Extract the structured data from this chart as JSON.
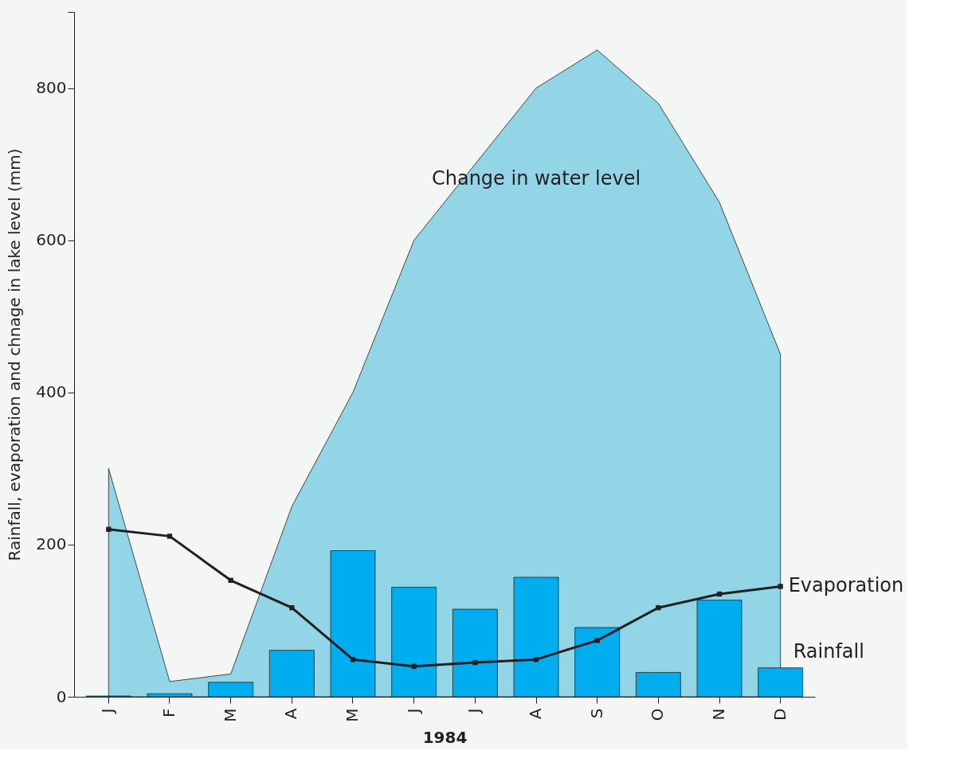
{
  "chart_data": {
    "type": "bar",
    "xlabel": "1984",
    "ylabel": "Rainfall, evaporation and chnage in lake level (mm)",
    "categories": [
      "J",
      "F",
      "M",
      "A",
      "M",
      "J",
      "J",
      "A",
      "S",
      "O",
      "N",
      "D"
    ],
    "ylim": [
      0,
      900
    ],
    "yticks": [
      0,
      200,
      400,
      600,
      800,
      {
        "value": 900,
        "label": null
      }
    ],
    "grid": false,
    "series": [
      {
        "name": "Change in water level",
        "type": "area",
        "color": "#92d5e6",
        "values": [
          300,
          20,
          30,
          250,
          400,
          600,
          700,
          800,
          850,
          780,
          650,
          450
        ]
      },
      {
        "name": "Rainfall",
        "color": "#00aeef",
        "values": [
          1,
          4,
          19,
          61,
          192,
          144,
          115,
          157,
          91,
          32,
          127,
          38
        ]
      },
      {
        "name": "Evaporation",
        "type": "line",
        "color": "#231f20",
        "marker": "square",
        "line_style": "solid",
        "values": [
          220,
          211,
          153,
          117,
          49,
          40,
          45,
          49,
          74,
          117,
          135,
          145
        ]
      }
    ]
  }
}
